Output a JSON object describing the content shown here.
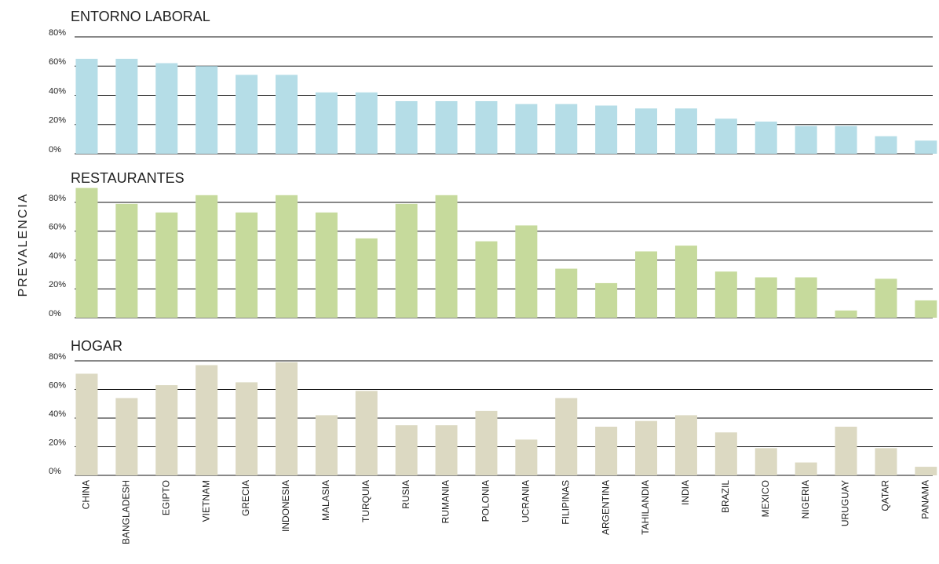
{
  "chart_data": [
    {
      "type": "bar",
      "title": "ENTORNO LABORAL",
      "color": "#b5dde7",
      "values": [
        65,
        65,
        62,
        60,
        54,
        54,
        42,
        42,
        36,
        36,
        36,
        34,
        34,
        33,
        31,
        31,
        24,
        22,
        19,
        19,
        12,
        9
      ],
      "ylim": [
        0,
        80
      ],
      "yticks": [
        {
          "value": 0,
          "label": "0%"
        },
        {
          "value": 20,
          "label": "20%"
        },
        {
          "value": 40,
          "label": "40%"
        },
        {
          "value": 60,
          "label": "60%"
        },
        {
          "value": 80,
          "label": "80%"
        }
      ],
      "grid": true
    },
    {
      "type": "bar",
      "title": "RESTAURANTES",
      "color": "#c6da9c",
      "ylabel": "PREVALENCIA",
      "values": [
        90,
        79,
        73,
        85,
        73,
        85,
        73,
        55,
        79,
        85,
        53,
        64,
        34,
        24,
        46,
        50,
        32,
        28,
        28,
        5,
        27,
        12
      ],
      "ylim": [
        0,
        90
      ],
      "yticks": [
        {
          "value": 0,
          "label": "0%"
        },
        {
          "value": 20,
          "label": "20%"
        },
        {
          "value": 40,
          "label": "40%"
        },
        {
          "value": 60,
          "label": "60%"
        },
        {
          "value": 80,
          "label": "80%"
        }
      ],
      "grid": true
    },
    {
      "type": "bar",
      "title": "HOGAR",
      "color": "#dcd9c2",
      "categories": [
        "CHINA",
        "BANGLADESH",
        "EGIPTO",
        "VIETNAM",
        "GRECIA",
        "INDONESIA",
        "MALASIA",
        "TURQUIA",
        "RUSIA",
        "RUMANIA",
        "POLONIA",
        "UCRANIA",
        "FILIPINAS",
        "ARGENTINA",
        "TAHILANDIA",
        "INDIA",
        "BRAZIL",
        "MEXICO",
        "NIGERIA",
        "URUGUAY",
        "QATAR",
        "PANAMA"
      ],
      "values": [
        71,
        54,
        63,
        77,
        65,
        79,
        42,
        59,
        35,
        35,
        45,
        25,
        54,
        34,
        38,
        42,
        30,
        19,
        9,
        34,
        19,
        6
      ],
      "ylim": [
        0,
        80
      ],
      "yticks": [
        {
          "value": 0,
          "label": "0%"
        },
        {
          "value": 20,
          "label": "20%"
        },
        {
          "value": 40,
          "label": "40%"
        },
        {
          "value": 60,
          "label": "60%"
        },
        {
          "value": 80,
          "label": "80%"
        }
      ],
      "grid": true
    }
  ]
}
